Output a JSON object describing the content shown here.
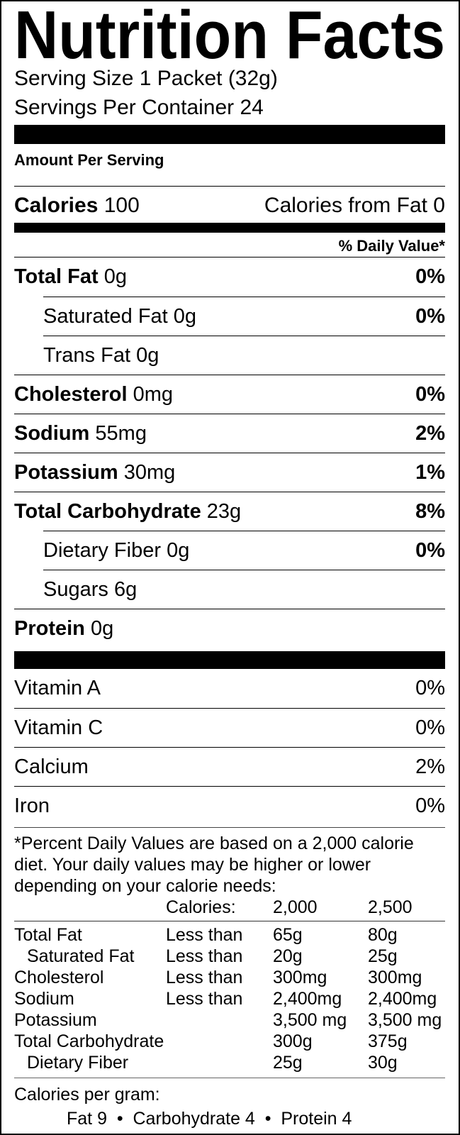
{
  "title": "Nutrition Facts",
  "serving_size": "Serving Size 1 Packet (32g)",
  "servings_per_container": "Servings Per Container 24",
  "amount_per_serving": "Amount Per Serving",
  "calories": {
    "label": "Calories",
    "value": "100",
    "from_fat": "Calories from Fat 0"
  },
  "daily_value_header": "% Daily Value*",
  "nutrients": [
    {
      "label": "Total Fat",
      "amount": "0g",
      "dv": "0%"
    },
    {
      "label": "Saturated Fat",
      "amount": "0g",
      "dv": "0%"
    },
    {
      "label": "Trans Fat",
      "amount": "0g",
      "dv": ""
    },
    {
      "label": "Cholesterol",
      "amount": "0mg",
      "dv": "0%"
    },
    {
      "label": "Sodium",
      "amount": "55mg",
      "dv": "2%"
    },
    {
      "label": "Potassium",
      "amount": "30mg",
      "dv": "1%"
    },
    {
      "label": "Total Carbohydrate",
      "amount": "23g",
      "dv": "8%"
    },
    {
      "label": "Dietary Fiber",
      "amount": "0g",
      "dv": "0%"
    },
    {
      "label": "Sugars",
      "amount": "6g",
      "dv": ""
    },
    {
      "label": "Protein",
      "amount": "0g",
      "dv": ""
    }
  ],
  "vitamins": [
    {
      "label": "Vitamin A",
      "dv": "0%"
    },
    {
      "label": "Vitamin C",
      "dv": "0%"
    },
    {
      "label": "Calcium",
      "dv": "2%"
    },
    {
      "label": "Iron",
      "dv": "0%"
    }
  ],
  "footnote": [
    "*Percent Daily Values are based on a 2,000 calorie",
    "diet. Your daily values may be higher or lower",
    "depending on your calorie needs:"
  ],
  "reference_table": {
    "header": [
      "",
      "Calories:",
      "2,000",
      "2,500"
    ],
    "rows": [
      [
        "Total Fat",
        "Less than",
        "65g",
        "80g"
      ],
      [
        "Saturated Fat",
        "Less than",
        "20g",
        "25g"
      ],
      [
        "Cholesterol",
        "Less than",
        "300mg",
        "300mg"
      ],
      [
        "Sodium",
        "Less than",
        "2,400mg",
        "2,400mg"
      ],
      [
        "Potassium",
        "",
        "3,500 mg",
        "3,500 mg"
      ],
      [
        "Total Carbohydrate",
        "",
        "300g",
        "375g"
      ],
      [
        "Dietary Fiber",
        "",
        "25g",
        "30g"
      ]
    ]
  },
  "calories_per_gram": {
    "label": "Calories per gram:",
    "line": "Fat 9  •  Carbohydrate 4  •  Protein 4"
  }
}
